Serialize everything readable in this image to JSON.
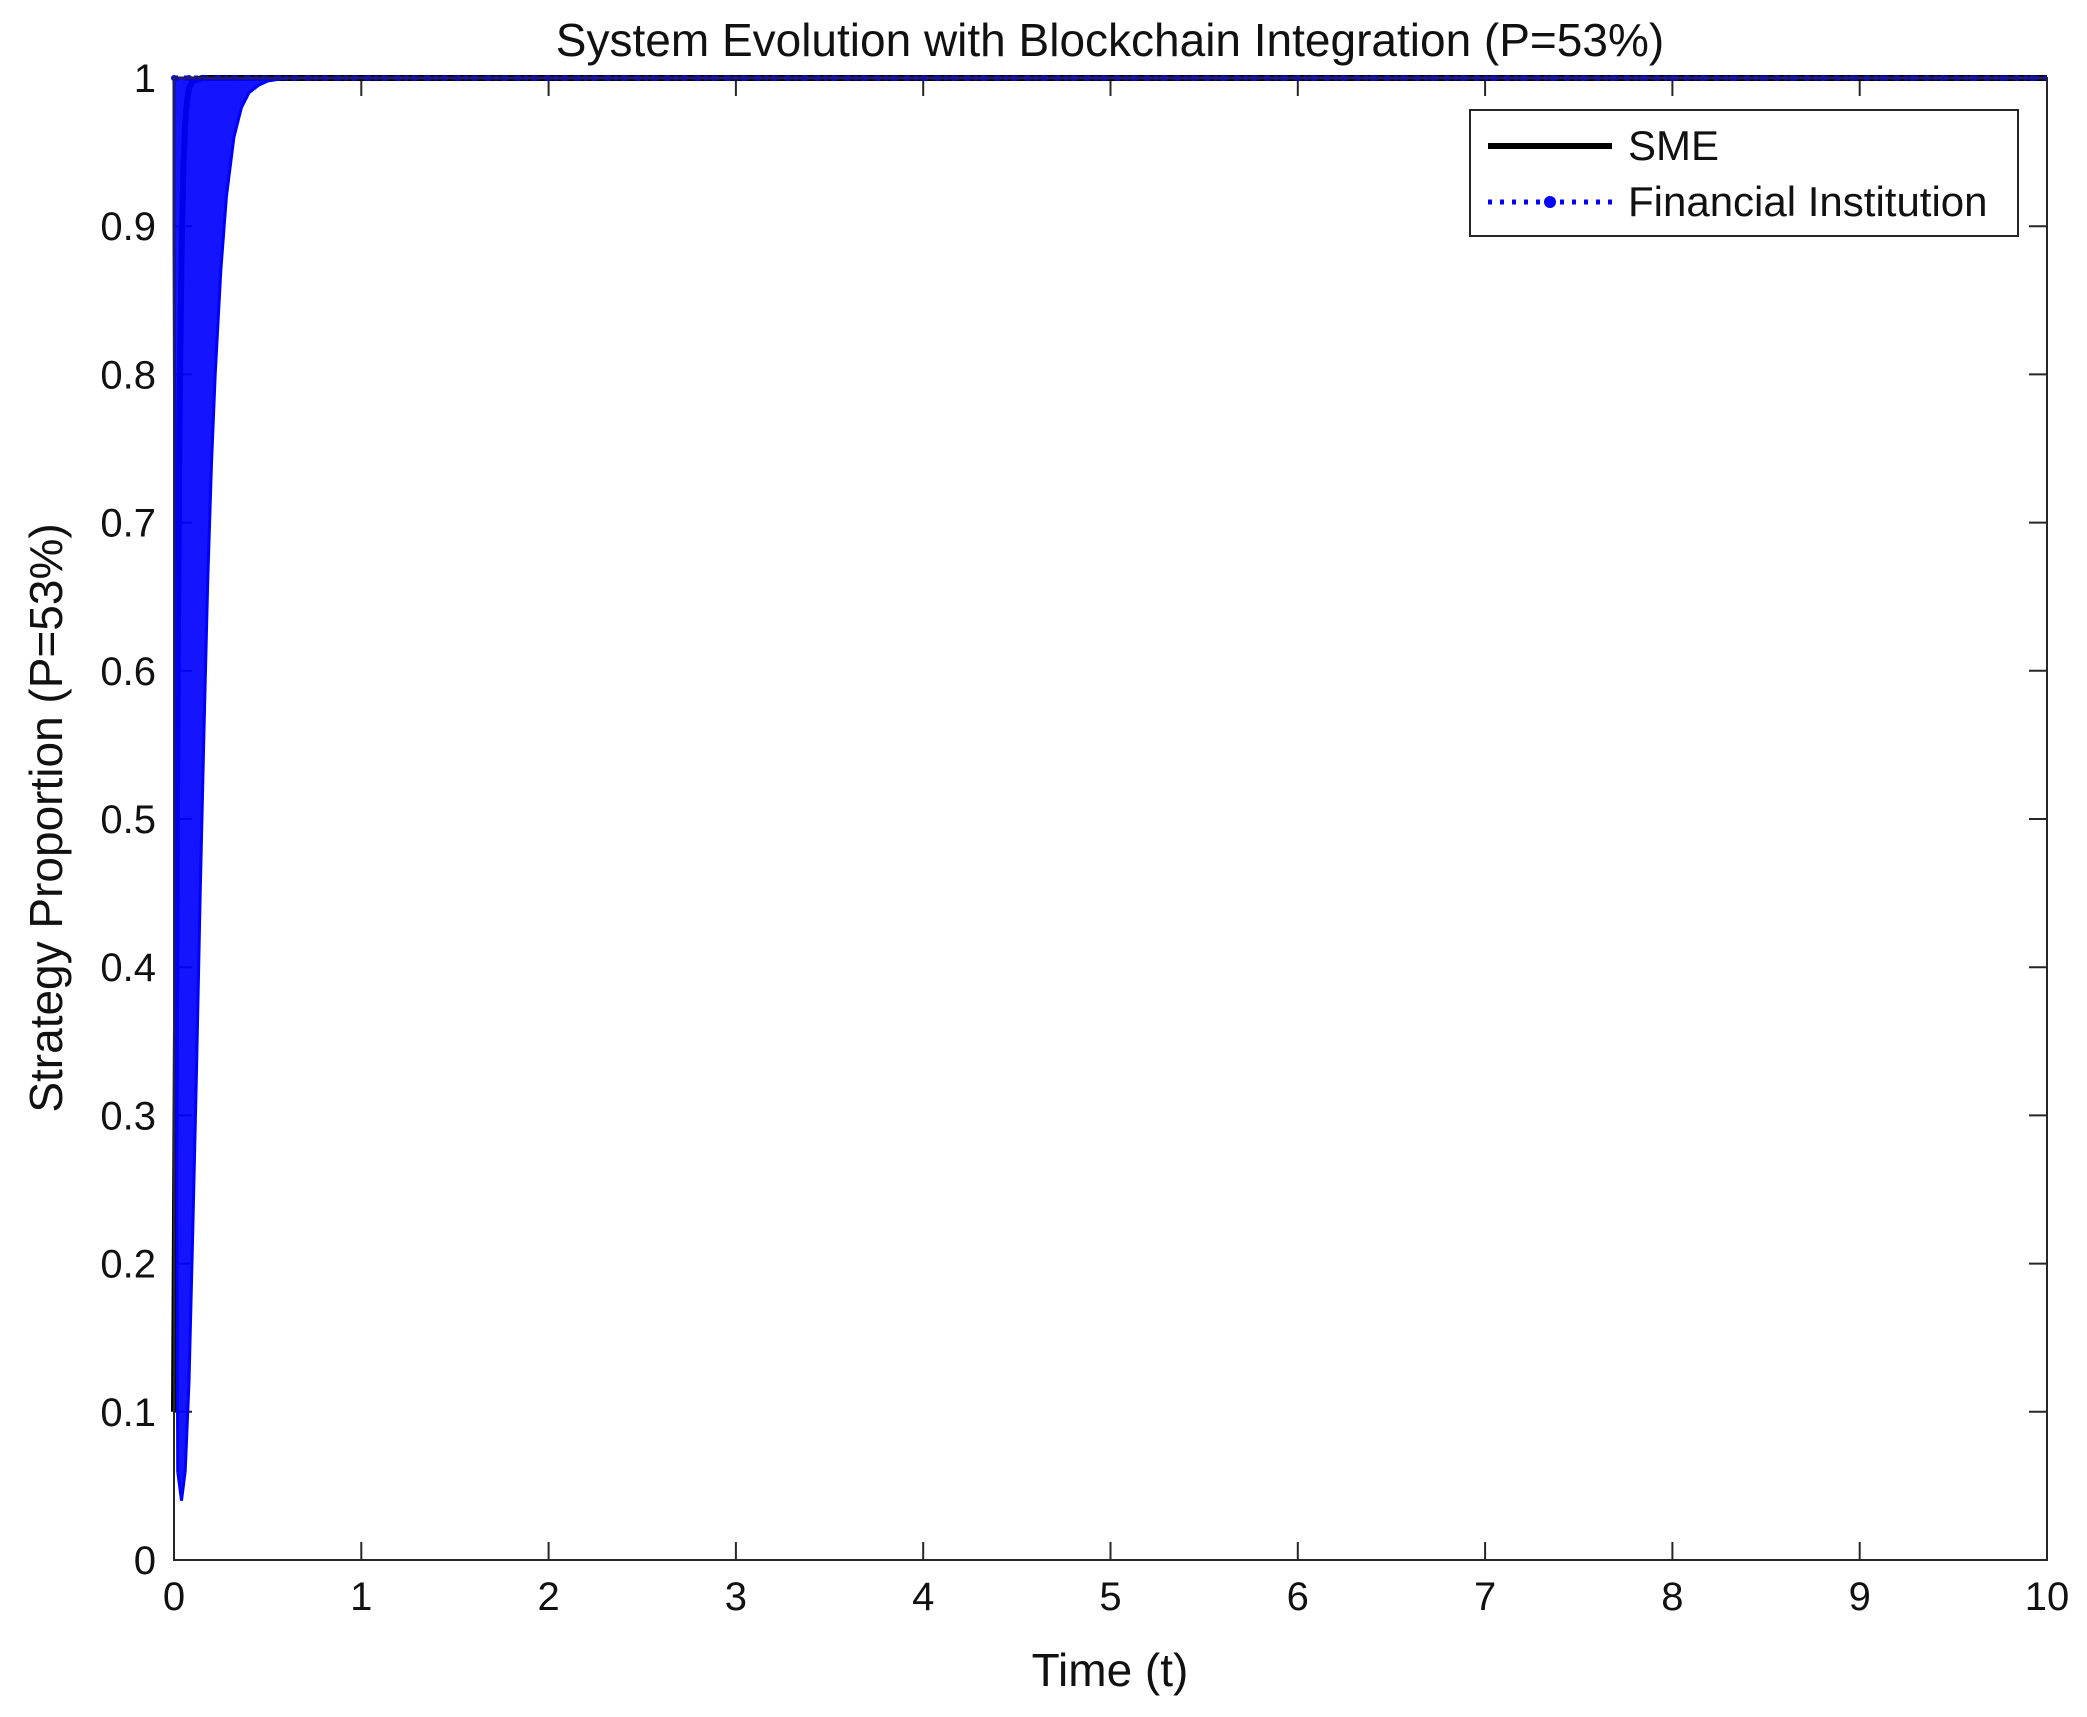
{
  "chart_data": {
    "type": "line",
    "title": "System Evolution with Blockchain Integration (P=53%)",
    "xlabel": "Time (t)",
    "ylabel": "Strategy Proportion (P=53%)",
    "xlim": [
      0,
      10
    ],
    "ylim": [
      0,
      1
    ],
    "xticks": [
      "0",
      "1",
      "2",
      "3",
      "4",
      "5",
      "6",
      "7",
      "8",
      "9",
      "10"
    ],
    "yticks": [
      "0",
      "0.1",
      "0.2",
      "0.3",
      "0.4",
      "0.5",
      "0.6",
      "0.7",
      "0.8",
      "0.9",
      "1"
    ],
    "grid": false,
    "legend_position": "top-right",
    "series": [
      {
        "name": "SME",
        "color": "#000000",
        "style": "solid",
        "x": [
          0,
          0.01,
          0.02,
          0.03,
          0.04,
          0.05,
          0.06,
          0.07,
          0.08,
          0.1,
          0.15,
          0.3,
          1,
          2,
          3,
          4,
          5,
          6,
          7,
          8,
          9,
          10
        ],
        "y": [
          0.1,
          0.35,
          0.6,
          0.78,
          0.88,
          0.94,
          0.97,
          0.985,
          0.993,
          0.998,
          1,
          1,
          1,
          1,
          1,
          1,
          1,
          1,
          1,
          1,
          1,
          1
        ]
      },
      {
        "name": "Financial Institution",
        "color": "#0000ff",
        "style": "dotted",
        "band_x": [
          0,
          0.02,
          0.04,
          0.06,
          0.08,
          0.1,
          0.12,
          0.14,
          0.16,
          0.18,
          0.2,
          0.22,
          0.25,
          0.28,
          0.32,
          0.36,
          0.4,
          0.45,
          0.5,
          0.55,
          0.6,
          0.7,
          1,
          2,
          3,
          4,
          5,
          6,
          7,
          8,
          9,
          10
        ],
        "band_low": [
          0.9,
          0.06,
          0.04,
          0.06,
          0.12,
          0.22,
          0.33,
          0.45,
          0.56,
          0.66,
          0.74,
          0.8,
          0.87,
          0.92,
          0.96,
          0.98,
          0.99,
          0.995,
          0.998,
          0.999,
          1,
          1,
          1,
          1,
          1,
          1,
          1,
          1,
          1,
          1,
          1,
          1
        ],
        "band_high": [
          1,
          1,
          1,
          1,
          1,
          1,
          1,
          1,
          1,
          1,
          1,
          1,
          1,
          1,
          1,
          1,
          1,
          1,
          1,
          1,
          1,
          1,
          1,
          1,
          1,
          1,
          1,
          1,
          1,
          1,
          1,
          1
        ]
      }
    ]
  }
}
